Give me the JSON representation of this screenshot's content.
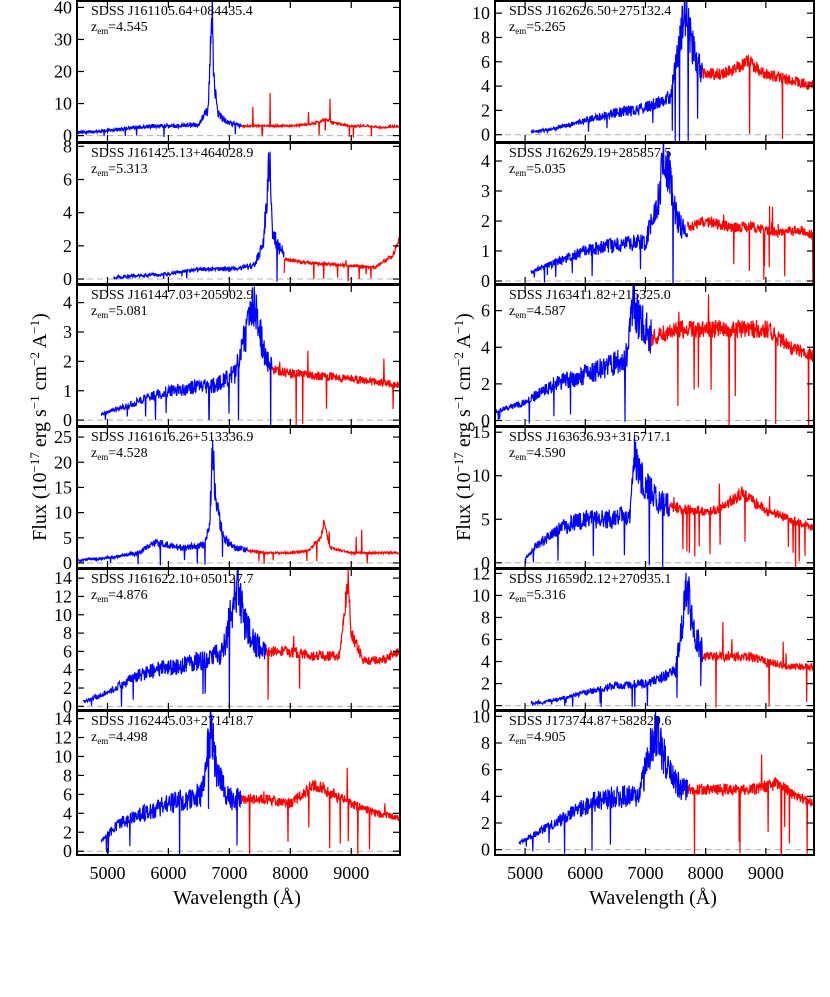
{
  "figure": {
    "x_label": "Wavelength (Å)",
    "y_label_main": "Flux (10",
    "y_label_sup1": "−17",
    "y_label_mid1": " erg s",
    "y_label_sup2": "−1",
    "y_label_mid2": " cm",
    "y_label_sup3": "−2",
    "y_label_mid3": " A",
    "y_label_sup4": "−1",
    "y_label_end": ")",
    "colors": {
      "red_spectrum": "#ff0000",
      "blue_spectrum": "#0000ff",
      "zero_line": "#b0b0b0",
      "axes": "#000000"
    }
  },
  "chart_data": [
    {
      "type": "line",
      "name": "SDSS J161105.64+084435.4",
      "z_label": "4.545",
      "z": 4.545,
      "yticks": [
        0,
        10,
        20,
        30,
        40
      ],
      "ylim": [
        -2,
        42
      ],
      "xlim": [
        4500,
        9800
      ],
      "xticks": [
        5000,
        6000,
        7000,
        8000,
        9000
      ],
      "series": [
        {
          "name": "blue",
          "x": [
            4500,
            5000,
            5400,
            5800,
            6200,
            6500,
            6650,
            6720,
            6740,
            6800,
            6900,
            7000,
            7100,
            7200
          ],
          "y": [
            1,
            1.5,
            2.5,
            3,
            3,
            3.5,
            8,
            40,
            20,
            8,
            5,
            4,
            3.5,
            3
          ]
        },
        {
          "name": "red",
          "x": [
            7200,
            7500,
            8000,
            8300,
            8600,
            8700,
            9000,
            9300,
            9500,
            9800
          ],
          "y": [
            3,
            3,
            3,
            3.5,
            5,
            4,
            3,
            3,
            2.5,
            3
          ]
        }
      ]
    },
    {
      "type": "line",
      "name": "SDSS J161425.13+464028.9",
      "z_label": "5.313",
      "z": 5.313,
      "yticks": [
        0,
        2,
        4,
        6,
        8
      ],
      "ylim": [
        -0.3,
        8.2
      ],
      "xlim": [
        4500,
        9800
      ],
      "xticks": [
        5000,
        6000,
        7000,
        8000,
        9000
      ],
      "series": [
        {
          "name": "blue",
          "x": [
            5100,
            5500,
            6000,
            6500,
            7000,
            7400,
            7550,
            7620,
            7660,
            7700,
            7800,
            7900
          ],
          "y": [
            0.1,
            0.2,
            0.3,
            0.6,
            0.6,
            0.8,
            2,
            5,
            7.5,
            3,
            2,
            1.5
          ]
        },
        {
          "name": "red",
          "x": [
            7900,
            8200,
            8600,
            9000,
            9400,
            9700,
            9800
          ],
          "y": [
            1.2,
            1,
            0.9,
            0.8,
            0.7,
            1.5,
            2.5
          ]
        }
      ]
    },
    {
      "type": "line",
      "name": "SDSS J161447.03+205902.9",
      "z_label": "5.081",
      "z": 5.081,
      "yticks": [
        0,
        1,
        2,
        3,
        4
      ],
      "ylim": [
        -0.2,
        4.6
      ],
      "xlim": [
        4500,
        9800
      ],
      "xticks": [
        5000,
        6000,
        7000,
        8000,
        9000
      ],
      "series": [
        {
          "name": "blue",
          "x": [
            4900,
            5200,
            5600,
            6000,
            6400,
            6800,
            7100,
            7300,
            7400,
            7500,
            7600,
            7700
          ],
          "y": [
            0.2,
            0.4,
            0.7,
            1,
            1.1,
            1.2,
            1.6,
            3.2,
            4,
            3,
            2.2,
            1.8
          ]
        },
        {
          "name": "red",
          "x": [
            7700,
            8000,
            8500,
            9000,
            9400,
            9800
          ],
          "y": [
            1.7,
            1.6,
            1.5,
            1.4,
            1.3,
            1.2
          ]
        }
      ]
    },
    {
      "type": "line",
      "name": "SDSS J161616.26+513336.9",
      "z_label": "4.528",
      "z": 4.528,
      "yticks": [
        0,
        5,
        10,
        15,
        20,
        25
      ],
      "ylim": [
        -1,
        27
      ],
      "xlim": [
        4500,
        9800
      ],
      "xticks": [
        5000,
        6000,
        7000,
        8000,
        9000
      ],
      "series": [
        {
          "name": "blue",
          "x": [
            4500,
            5000,
            5500,
            5800,
            6200,
            6600,
            6680,
            6720,
            6780,
            6900,
            7100,
            7300
          ],
          "y": [
            0.5,
            1,
            2,
            4,
            3,
            3.5,
            8,
            24,
            12,
            5,
            3,
            2.5
          ]
        },
        {
          "name": "red",
          "x": [
            7300,
            7600,
            8000,
            8300,
            8500,
            8550,
            8650,
            9000,
            9400,
            9800
          ],
          "y": [
            2.5,
            2,
            2,
            2.5,
            5,
            8,
            3,
            2,
            2,
            2
          ]
        }
      ]
    },
    {
      "type": "line",
      "name": "SDSS J161622.10+050127.7",
      "z_label": "4.876",
      "z": 4.876,
      "yticks": [
        0,
        2,
        4,
        6,
        8,
        10,
        12,
        14
      ],
      "ylim": [
        -0.4,
        15
      ],
      "xlim": [
        4500,
        9800
      ],
      "xticks": [
        5000,
        6000,
        7000,
        8000,
        9000
      ],
      "series": [
        {
          "name": "blue",
          "x": [
            4600,
            5000,
            5400,
            5800,
            6200,
            6600,
            6900,
            7050,
            7150,
            7250,
            7400,
            7600
          ],
          "y": [
            0.5,
            1.5,
            3,
            4,
            4.5,
            5,
            6,
            11,
            13,
            9,
            7,
            6
          ]
        },
        {
          "name": "red",
          "x": [
            7600,
            8000,
            8400,
            8800,
            8950,
            9000,
            9200,
            9500,
            9800
          ],
          "y": [
            6,
            6,
            5.5,
            5.5,
            14,
            8,
            5,
            5,
            6
          ]
        }
      ]
    },
    {
      "type": "line",
      "name": "SDSS J162445.03+271418.7",
      "z_label": "4.498",
      "z": 4.498,
      "yticks": [
        0,
        2,
        4,
        6,
        8,
        10,
        12,
        14
      ],
      "ylim": [
        -0.4,
        14.8
      ],
      "xlim": [
        4500,
        9800
      ],
      "xticks": [
        5000,
        6000,
        7000,
        8000,
        9000
      ],
      "series": [
        {
          "name": "blue",
          "x": [
            4900,
            5200,
            5600,
            6000,
            6300,
            6550,
            6650,
            6700,
            6800,
            7000,
            7200
          ],
          "y": [
            1,
            3,
            4,
            5,
            5.5,
            6,
            11,
            13,
            8,
            5.5,
            5.5
          ]
        },
        {
          "name": "red",
          "x": [
            7200,
            7600,
            8000,
            8400,
            8700,
            9000,
            9400,
            9800
          ],
          "y": [
            5.5,
            5.5,
            5,
            7,
            6,
            5,
            4,
            3.5
          ]
        }
      ]
    },
    {
      "type": "line",
      "name": "SDSS J162626.50+275132.4",
      "z_label": "5.265",
      "z": 5.265,
      "yticks": [
        0,
        2,
        4,
        6,
        8,
        10
      ],
      "ylim": [
        -0.6,
        11
      ],
      "xlim": [
        4500,
        9800
      ],
      "xticks": [
        5000,
        6000,
        7000,
        8000,
        9000
      ],
      "series": [
        {
          "name": "blue",
          "x": [
            5100,
            5500,
            6000,
            6500,
            7000,
            7400,
            7550,
            7650,
            7750,
            7850,
            7950
          ],
          "y": [
            0.2,
            0.5,
            1.2,
            1.8,
            2.2,
            3,
            7,
            10,
            8,
            6,
            5
          ]
        },
        {
          "name": "red",
          "x": [
            7950,
            8300,
            8700,
            9000,
            9400,
            9800
          ],
          "y": [
            5,
            5,
            6,
            5,
            4.5,
            4
          ]
        }
      ]
    },
    {
      "type": "line",
      "name": "SDSS J162629.19+285857.5",
      "z_label": "5.035",
      "z": 5.035,
      "yticks": [
        0,
        1,
        2,
        3,
        4
      ],
      "ylim": [
        -0.1,
        4.6
      ],
      "xlim": [
        4500,
        9800
      ],
      "xticks": [
        5000,
        6000,
        7000,
        8000,
        9000
      ],
      "series": [
        {
          "name": "blue",
          "x": [
            5100,
            5500,
            6000,
            6500,
            7000,
            7200,
            7300,
            7400,
            7500,
            7600,
            7700
          ],
          "y": [
            0.3,
            0.6,
            1,
            1.2,
            1.3,
            2.5,
            4,
            3.5,
            2.2,
            1.8,
            1.6
          ]
        },
        {
          "name": "red",
          "x": [
            7700,
            8000,
            8400,
            8800,
            9200,
            9600,
            9800
          ],
          "y": [
            1.8,
            2,
            1.8,
            1.8,
            1.6,
            1.7,
            1.5
          ]
        }
      ]
    },
    {
      "type": "line",
      "name": "SDSS J163411.82+215325.0",
      "z_label": "4.587",
      "z": 4.587,
      "yticks": [
        0,
        2,
        4,
        6
      ],
      "ylim": [
        -0.3,
        7.4
      ],
      "xlim": [
        4500,
        9800
      ],
      "xticks": [
        5000,
        6000,
        7000,
        8000,
        9000
      ],
      "series": [
        {
          "name": "blue",
          "x": [
            4500,
            5000,
            5500,
            6000,
            6400,
            6700,
            6800,
            6900,
            7000,
            7100
          ],
          "y": [
            0.5,
            1,
            2,
            2.5,
            3,
            3.5,
            6.5,
            5.5,
            5,
            4.5
          ]
        },
        {
          "name": "red",
          "x": [
            7100,
            7500,
            8000,
            8500,
            9000,
            9400,
            9800
          ],
          "y": [
            4.5,
            5,
            5,
            5,
            5,
            4,
            3.5
          ]
        }
      ]
    },
    {
      "type": "line",
      "name": "SDSS J163636.93+315717.1",
      "z_label": "4.590",
      "z": 4.59,
      "yticks": [
        0,
        5,
        10,
        15
      ],
      "ylim": [
        -0.6,
        15.6
      ],
      "xlim": [
        4500,
        9800
      ],
      "xticks": [
        5000,
        6000,
        7000,
        8000,
        9000
      ],
      "series": [
        {
          "name": "blue",
          "x": [
            5000,
            5200,
            5600,
            6000,
            6400,
            6750,
            6800,
            6900,
            7000,
            7200,
            7400
          ],
          "y": [
            0.5,
            2,
            4,
            5,
            5,
            5.5,
            13,
            10,
            9,
            7,
            6.5
          ]
        },
        {
          "name": "red",
          "x": [
            7400,
            7800,
            8200,
            8600,
            9000,
            9400,
            9800
          ],
          "y": [
            6.5,
            6,
            6,
            8,
            6,
            5,
            4
          ]
        }
      ]
    },
    {
      "type": "line",
      "name": "SDSS J165902.12+270935.1",
      "z_label": "5.316",
      "z": 5.316,
      "yticks": [
        0,
        2,
        4,
        6,
        8,
        10,
        12
      ],
      "ylim": [
        -0.4,
        12.4
      ],
      "xlim": [
        4500,
        9800
      ],
      "xticks": [
        5000,
        6000,
        7000,
        8000,
        9000
      ],
      "series": [
        {
          "name": "blue",
          "x": [
            5100,
            5500,
            6000,
            6500,
            7000,
            7500,
            7650,
            7700,
            7750,
            7850,
            7950
          ],
          "y": [
            0.2,
            0.5,
            1.2,
            1.8,
            2,
            3,
            9,
            11,
            8,
            6,
            5
          ]
        },
        {
          "name": "red",
          "x": [
            7950,
            8300,
            8700,
            9000,
            9400,
            9800
          ],
          "y": [
            4.5,
            4.5,
            4.5,
            4,
            3.5,
            3.5
          ]
        }
      ]
    },
    {
      "type": "line",
      "name": "SDSS J173744.87+582829.6",
      "z_label": "4.905",
      "z": 4.905,
      "yticks": [
        0,
        2,
        4,
        6,
        8,
        10
      ],
      "ylim": [
        -0.4,
        10.4
      ],
      "xlim": [
        4500,
        9800
      ],
      "xticks": [
        5000,
        6000,
        7000,
        8000,
        9000
      ],
      "series": [
        {
          "name": "blue",
          "x": [
            4900,
            5300,
            5700,
            6100,
            6500,
            6900,
            7100,
            7200,
            7300,
            7500,
            7700
          ],
          "y": [
            0.5,
            1.5,
            2.5,
            3.5,
            4,
            4,
            8,
            9,
            7,
            5,
            4.5
          ]
        },
        {
          "name": "red",
          "x": [
            7700,
            8000,
            8400,
            8800,
            9200,
            9500,
            9800
          ],
          "y": [
            4.5,
            4.5,
            4.5,
            4.5,
            5,
            4,
            3.5
          ]
        }
      ]
    }
  ]
}
